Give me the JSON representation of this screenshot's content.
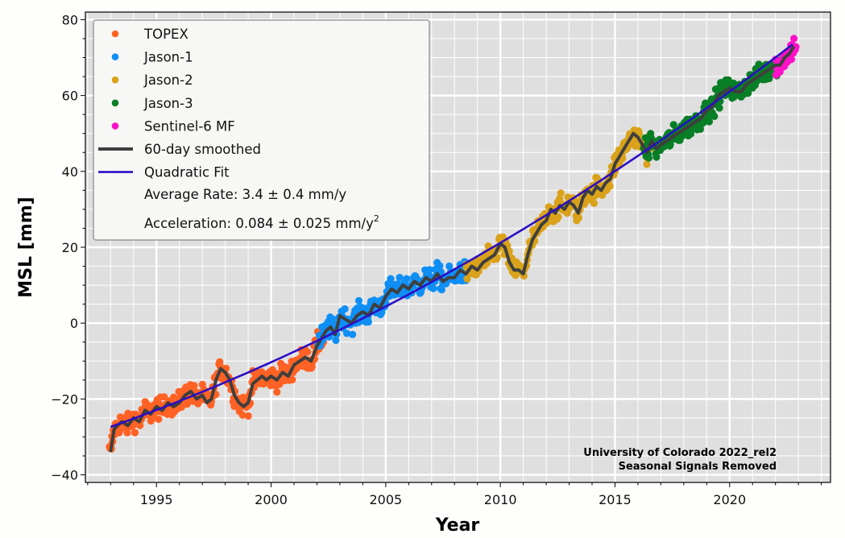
{
  "chart_data": {
    "type": "scatter",
    "title": "",
    "xlabel": "Year",
    "ylabel": "MSL [mm]",
    "xlim": [
      1991.9,
      2024.4
    ],
    "ylim": [
      -42,
      82
    ],
    "grid": true,
    "x_ticks": [
      1995,
      2000,
      2005,
      2010,
      2015,
      2020
    ],
    "x_tick_labels": [
      "1995",
      "2000",
      "2005",
      "2010",
      "2015",
      "2020"
    ],
    "y_ticks": [
      -40,
      -20,
      0,
      20,
      40,
      60,
      80
    ],
    "y_tick_labels": [
      "−40",
      "−20",
      "0",
      "20",
      "40",
      "60",
      "80"
    ],
    "legend_position": "top-left",
    "legend": [
      {
        "label": "TOPEX",
        "kind": "marker",
        "color": "#ff6224"
      },
      {
        "label": "Jason-1",
        "kind": "marker",
        "color": "#0f8ff5"
      },
      {
        "label": "Jason-2",
        "kind": "marker",
        "color": "#daa21a"
      },
      {
        "label": "Jason-3",
        "kind": "marker",
        "color": "#087e26"
      },
      {
        "label": "Sentinel-6 MF",
        "kind": "marker",
        "color": "#ff11c8"
      },
      {
        "label": "60-day smoothed",
        "kind": "line",
        "color": "#3f3f3d"
      },
      {
        "label": "Quadratic Fit",
        "kind": "line",
        "color": "#2b0ec4"
      }
    ],
    "legend_notes": {
      "rate": "Average Rate: 3.4 ± 0.4 mm/y",
      "acceleration_prefix": "Acceleration: 0.084 ± 0.025 mm/y",
      "acceleration_sup": "2"
    },
    "annotations": [
      "University of Colorado 2022_rel2",
      "Seasonal Signals Removed"
    ],
    "smoothed": {
      "name": "60-day smoothed",
      "x": [
        1993.0,
        1993.15,
        1993.3,
        1993.5,
        1993.75,
        1994.0,
        1994.25,
        1994.5,
        1994.75,
        1995.0,
        1995.25,
        1995.5,
        1995.75,
        1996.0,
        1996.25,
        1996.5,
        1996.75,
        1997.0,
        1997.2,
        1997.4,
        1997.6,
        1997.8,
        1998.0,
        1998.2,
        1998.4,
        1998.6,
        1998.8,
        1999.0,
        1999.2,
        1999.4,
        1999.6,
        1999.8,
        2000.0,
        2000.25,
        2000.5,
        2000.75,
        2001.0,
        2001.25,
        2001.5,
        2001.75,
        2002.0,
        2002.2,
        2002.4,
        2002.6,
        2002.8,
        2003.0,
        2003.25,
        2003.5,
        2003.75,
        2004.0,
        2004.25,
        2004.5,
        2004.75,
        2005.0,
        2005.25,
        2005.5,
        2005.75,
        2006.0,
        2006.25,
        2006.5,
        2006.75,
        2007.0,
        2007.25,
        2007.5,
        2007.75,
        2008.0,
        2008.25,
        2008.5,
        2008.75,
        2009.0,
        2009.25,
        2009.5,
        2009.75,
        2010.0,
        2010.2,
        2010.4,
        2010.6,
        2010.8,
        2011.0,
        2011.2,
        2011.4,
        2011.6,
        2011.8,
        2012.0,
        2012.2,
        2012.4,
        2012.6,
        2012.8,
        2013.0,
        2013.2,
        2013.4,
        2013.6,
        2013.8,
        2014.0,
        2014.2,
        2014.4,
        2014.6,
        2014.8,
        2015.0,
        2015.2,
        2015.4,
        2015.6,
        2015.8,
        2016.0,
        2016.2,
        2016.4,
        2016.6,
        2016.8,
        2017.0,
        2017.25,
        2017.5,
        2017.75,
        2018.0,
        2018.25,
        2018.5,
        2018.75,
        2019.0,
        2019.25,
        2019.5,
        2019.75,
        2020.0,
        2020.25,
        2020.5,
        2020.75,
        2021.0,
        2021.25,
        2021.5,
        2021.75,
        2022.0,
        2022.2,
        2022.4,
        2022.6,
        2022.8
      ],
      "y": [
        -34,
        -28,
        -27,
        -26,
        -27,
        -25,
        -26,
        -23,
        -24,
        -22,
        -23,
        -21,
        -22,
        -21,
        -19,
        -18,
        -20,
        -19,
        -21,
        -20,
        -15,
        -12,
        -13,
        -15,
        -19,
        -21,
        -22,
        -21,
        -16,
        -15,
        -14,
        -15,
        -14,
        -15,
        -13,
        -14,
        -11,
        -10,
        -9,
        -10,
        -6,
        -4,
        -2,
        -1,
        -3,
        2,
        1,
        0,
        2,
        3,
        2,
        5,
        4,
        7,
        9,
        8,
        10,
        9,
        11,
        10,
        12,
        11,
        13,
        11,
        12,
        12,
        14,
        13,
        15,
        14,
        16,
        17,
        18,
        21,
        20,
        16,
        14,
        14,
        13,
        18,
        22,
        24,
        26,
        27,
        30,
        29,
        31,
        30,
        32,
        31,
        29,
        33,
        35,
        34,
        36,
        35,
        37,
        38,
        42,
        44,
        46,
        48,
        50,
        49,
        47,
        45,
        48,
        46,
        47,
        48,
        49,
        50,
        51,
        52,
        53,
        54,
        56,
        57,
        60,
        61,
        62,
        61,
        61,
        63,
        64,
        65,
        66,
        67,
        68,
        68,
        70,
        71,
        73
      ]
    },
    "fit": {
      "name": "Quadratic Fit",
      "t0": 2008,
      "rate_mm_per_yr": 3.4,
      "acceleration_mm_per_yr2": 0.084,
      "offset_mm": 14.2,
      "x_range": [
        1993.0,
        2022.85
      ]
    },
    "series": [
      {
        "name": "TOPEX",
        "color": "#ff6224",
        "x_range": [
          1992.95,
          2002.35
        ]
      },
      {
        "name": "Jason-1",
        "color": "#0f8ff5",
        "x_range": [
          2002.05,
          2008.6
        ]
      },
      {
        "name": "Jason-2",
        "color": "#daa21a",
        "x_range": [
          2008.5,
          2016.6
        ]
      },
      {
        "name": "Jason-3",
        "color": "#087e26",
        "x_range": [
          2016.25,
          2022.3
        ]
      },
      {
        "name": "Sentinel-6 MF",
        "color": "#ff11c8",
        "x_range": [
          2022.0,
          2022.9
        ]
      }
    ],
    "points_per_year": 36,
    "scatter_spread_mm": 2.4
  }
}
